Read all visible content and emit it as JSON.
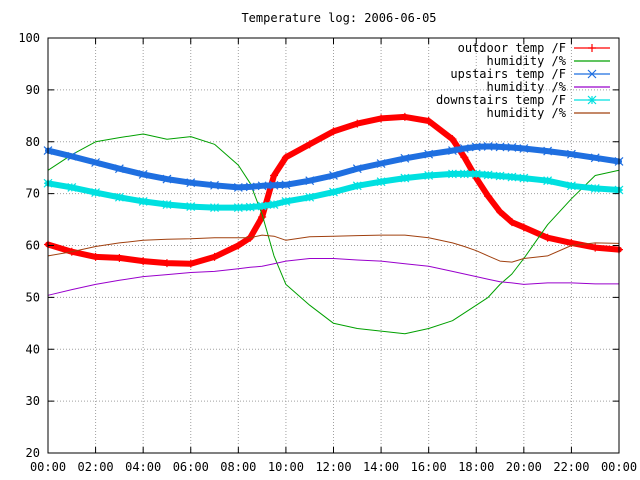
{
  "chart_data": {
    "type": "line",
    "title": "Temperature log: 2006-06-05",
    "xlabel": "",
    "ylabel": "",
    "xlim": [
      0,
      24
    ],
    "ylim": [
      20,
      100
    ],
    "grid": true,
    "legend_position": "top-right",
    "x_tick_labels": [
      "00:00",
      "02:00",
      "04:00",
      "06:00",
      "08:00",
      "10:00",
      "12:00",
      "14:00",
      "16:00",
      "18:00",
      "20:00",
      "22:00",
      "00:00"
    ],
    "y_tick_labels": [
      "20",
      "30",
      "40",
      "50",
      "60",
      "70",
      "80",
      "90",
      "100"
    ],
    "x": [
      0,
      1,
      2,
      3,
      4,
      5,
      6,
      7,
      8,
      8.5,
      9,
      9.5,
      10,
      11,
      12,
      13,
      14,
      15,
      16,
      17,
      17.5,
      18,
      18.5,
      19,
      19.5,
      20,
      21,
      22,
      23,
      24
    ],
    "series": [
      {
        "name": "outdoor temp /F",
        "color": "#ff0000",
        "marker": "plus",
        "values": [
          60.2,
          58.8,
          57.8,
          57.6,
          57.0,
          56.6,
          56.5,
          57.8,
          60.0,
          61.5,
          65.5,
          73.5,
          77.0,
          79.5,
          82.0,
          83.5,
          84.5,
          84.8,
          84.0,
          80.5,
          77.0,
          73.0,
          69.5,
          66.5,
          64.5,
          63.5,
          61.5,
          60.5,
          59.6,
          59.2
        ]
      },
      {
        "name": "humidity /%",
        "color": "#00a000",
        "values": [
          74.5,
          77.5,
          80.0,
          80.8,
          81.5,
          80.5,
          81.0,
          79.5,
          75.5,
          72.0,
          66.0,
          58.0,
          52.5,
          48.5,
          45.0,
          44.0,
          43.5,
          43.0,
          44.0,
          45.5,
          47.0,
          48.5,
          50.0,
          52.5,
          54.5,
          57.5,
          64.0,
          69.0,
          73.5,
          74.5
        ]
      },
      {
        "name": "upstairs temp /F",
        "color": "#1f6fe0",
        "marker": "x",
        "values": [
          78.3,
          77.2,
          76.0,
          74.8,
          73.7,
          72.8,
          72.1,
          71.6,
          71.2,
          71.3,
          71.5,
          71.6,
          71.7,
          72.5,
          73.5,
          74.8,
          75.8,
          76.8,
          77.6,
          78.3,
          78.7,
          79.0,
          79.1,
          79.0,
          78.9,
          78.7,
          78.2,
          77.6,
          76.9,
          76.2
        ]
      },
      {
        "name": "humidity /%",
        "color": "#9900cc",
        "values": [
          50.4,
          51.5,
          52.5,
          53.3,
          54.0,
          54.4,
          54.8,
          55.0,
          55.5,
          55.8,
          56.0,
          56.5,
          57.0,
          57.5,
          57.5,
          57.2,
          57.0,
          56.5,
          56.0,
          55.0,
          54.5,
          54.0,
          53.5,
          53.0,
          52.8,
          52.5,
          52.8,
          52.8,
          52.6,
          52.6
        ]
      },
      {
        "name": "downstairs temp /F",
        "color": "#00e0e0",
        "marker": "star",
        "values": [
          72.0,
          71.2,
          70.2,
          69.3,
          68.5,
          67.9,
          67.5,
          67.3,
          67.3,
          67.4,
          67.6,
          67.9,
          68.5,
          69.3,
          70.3,
          71.5,
          72.3,
          73.0,
          73.5,
          73.8,
          73.8,
          73.8,
          73.6,
          73.4,
          73.2,
          73.0,
          72.5,
          71.5,
          71.0,
          70.7
        ]
      },
      {
        "name": "humidity /%",
        "color": "#a0400f",
        "values": [
          58.0,
          58.8,
          59.8,
          60.5,
          61.0,
          61.2,
          61.3,
          61.5,
          61.5,
          61.5,
          62.0,
          61.8,
          61.0,
          61.7,
          61.8,
          61.9,
          62.0,
          62.0,
          61.5,
          60.5,
          59.8,
          59.0,
          58.0,
          57.0,
          56.8,
          57.5,
          58.0,
          60.0,
          60.5,
          60.4
        ]
      }
    ]
  }
}
